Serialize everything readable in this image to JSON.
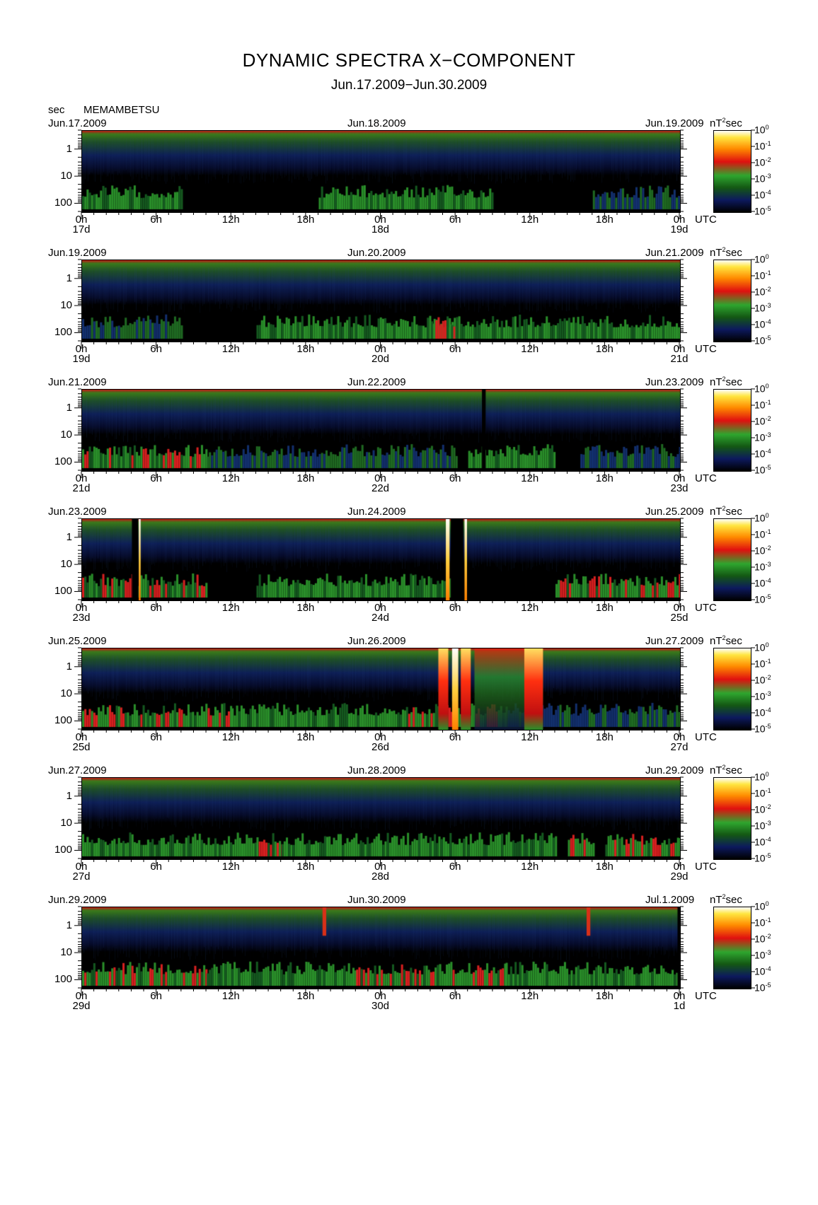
{
  "title": "DYNAMIC SPECTRA X−COMPONENT",
  "subtitle": "Jun.17.2009−Jun.30.2009",
  "yunit_label": "sec",
  "station": "MEMAMBETSU",
  "color_unit": "nT",
  "color_unit_sup": "2",
  "color_unit_tail": "sec",
  "utc_label": "UTC",
  "colorbar_exponents": [
    "0",
    "-1",
    "-2",
    "-3",
    "-4",
    "-5"
  ],
  "chart_data": {
    "type": "heatmap",
    "x_unit": "hours UTC",
    "y_unit": "period (sec)",
    "yscale": "log",
    "ylim_sec": [
      200,
      0.2
    ],
    "y_tick_labels": [
      "1",
      "10",
      "100"
    ],
    "x_tick_labels": [
      "0h",
      "6h",
      "12h",
      "18h",
      "0h",
      "6h",
      "12h",
      "18h",
      "0h"
    ],
    "color_scale": {
      "label": "nT²sec",
      "scale": "log",
      "range": [
        1e-05,
        1
      ],
      "tick_labels": [
        "10^0",
        "10^-1",
        "10^-2",
        "10^-3",
        "10^-4",
        "10^-5"
      ]
    },
    "colors": [
      "#000000",
      "#0d1a5e",
      "#1a5a1a",
      "#2fa62f",
      "#d81010",
      "#ff7a00",
      "#ffe640",
      "#ffffff"
    ],
    "panels": [
      {
        "start": "Jun.17.2009",
        "mid": "Jun.18.2009",
        "end": "Jun.19.2009",
        "day_labels": [
          "17d",
          "18d",
          "19d"
        ],
        "bars": [],
        "blobs": [
          [
            0,
            8,
            "mid"
          ],
          [
            19,
            33,
            "mid"
          ],
          [
            41,
            48,
            "low"
          ]
        ]
      },
      {
        "start": "Jun.19.2009",
        "mid": "Jun.20.2009",
        "end": "Jun.21.2009",
        "day_labels": [
          "19d",
          "20d",
          "21d"
        ],
        "bars": [],
        "blobs": [
          [
            0,
            8,
            "low"
          ],
          [
            14,
            48,
            "mid"
          ],
          [
            28,
            30,
            "red"
          ]
        ]
      },
      {
        "start": "Jun.21.2009",
        "mid": "Jun.22.2009",
        "end": "Jun.23.2009",
        "day_labels": [
          "21d",
          "22d",
          "23d"
        ],
        "bars": [
          [
            32.1,
            32.4,
            "gap"
          ]
        ],
        "blobs": [
          [
            0,
            10,
            "red"
          ],
          [
            10,
            30,
            "low"
          ],
          [
            31,
            38,
            "mid"
          ],
          [
            40,
            48,
            "low"
          ]
        ]
      },
      {
        "start": "Jun.23.2009",
        "mid": "Jun.24.2009",
        "end": "Jun.25.2009",
        "day_labels": [
          "23d",
          "24d",
          "25d"
        ],
        "bars": [
          [
            4.0,
            4.5,
            "gap"
          ],
          [
            4.55,
            4.7,
            "spike"
          ],
          [
            29.2,
            29.5,
            "spike"
          ],
          [
            29.6,
            30.6,
            "gap"
          ],
          [
            30.7,
            30.9,
            "spike"
          ]
        ],
        "blobs": [
          [
            0,
            10,
            "red"
          ],
          [
            14,
            22,
            "mid"
          ],
          [
            22,
            30,
            "mid"
          ],
          [
            38,
            48,
            "red"
          ]
        ]
      },
      {
        "start": "Jun.25.2009",
        "mid": "Jun.26.2009",
        "end": "Jun.27.2009",
        "day_labels": [
          "25d",
          "26d",
          "27d"
        ],
        "bars": [
          [
            28.6,
            29.4,
            "burst"
          ],
          [
            29.7,
            30.2,
            "spike"
          ],
          [
            30.4,
            31.2,
            "burst"
          ],
          [
            31.5,
            37.0,
            "wash"
          ],
          [
            35.5,
            37.0,
            "burst"
          ]
        ],
        "blobs": [
          [
            0,
            12,
            "red"
          ],
          [
            12,
            26,
            "mid"
          ],
          [
            26,
            34,
            "red"
          ],
          [
            34,
            48,
            "low"
          ]
        ]
      },
      {
        "start": "Jun.27.2009",
        "mid": "Jun.28.2009",
        "end": "Jun.29.2009",
        "day_labels": [
          "27d",
          "28d",
          "29d"
        ],
        "bars": [],
        "blobs": [
          [
            0,
            14,
            "mid"
          ],
          [
            14,
            16,
            "red"
          ],
          [
            16,
            38,
            "mid"
          ],
          [
            39,
            41,
            "red"
          ],
          [
            42,
            48,
            "red"
          ]
        ]
      },
      {
        "start": "Jun.29.2009",
        "mid": "Jun.30.2009",
        "end": "Jul.1.2009",
        "day_labels": [
          "29d",
          "30d",
          "1d"
        ],
        "bars": [
          [
            19.3,
            19.6,
            "redline"
          ],
          [
            40.5,
            40.8,
            "redline"
          ],
          [
            47.8,
            48,
            "gap"
          ]
        ],
        "blobs": [
          [
            0,
            10,
            "red"
          ],
          [
            10,
            22,
            "mid"
          ],
          [
            22,
            34,
            "red"
          ],
          [
            34,
            48,
            "mid"
          ]
        ]
      }
    ]
  }
}
